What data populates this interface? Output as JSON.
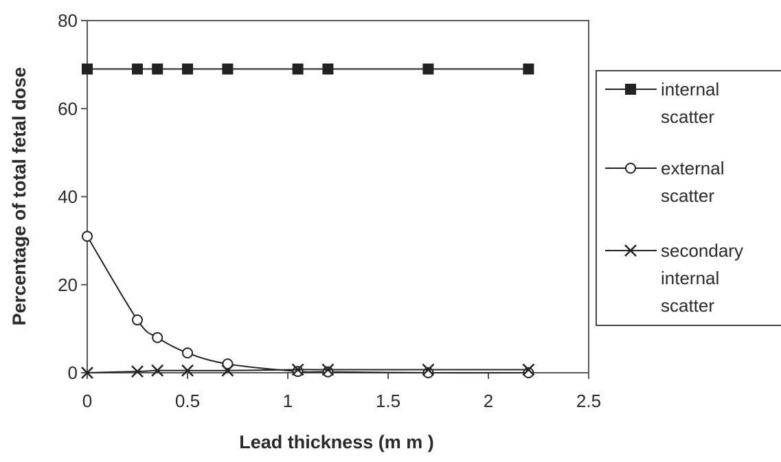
{
  "chart_data": {
    "type": "line",
    "title": "",
    "xlabel": "Lead thickness (m m )",
    "ylabel": "Percentage of total fetal dose",
    "xlim": [
      0,
      2.5
    ],
    "ylim": [
      0,
      80
    ],
    "xticks": [
      "0",
      "0.5",
      "1",
      "1.5",
      "2",
      "2.5"
    ],
    "yticks": [
      "0",
      "20",
      "40",
      "60",
      "80"
    ],
    "grid": false,
    "legend_position": "right",
    "series": [
      {
        "name": "internal scatter",
        "legend_lines": [
          "internal",
          "scatter"
        ],
        "marker": "filled-square",
        "color": "#222222",
        "x": [
          0,
          0.25,
          0.35,
          0.5,
          0.7,
          1.05,
          1.2,
          1.7,
          2.2
        ],
        "y": [
          69,
          69,
          69,
          69,
          69,
          69,
          69,
          69,
          69
        ]
      },
      {
        "name": "external scatter",
        "legend_lines": [
          "external",
          "scatter"
        ],
        "marker": "open-circle",
        "color": "#222222",
        "x": [
          0,
          0.25,
          0.35,
          0.5,
          0.7,
          1.05,
          1.2,
          1.7,
          2.2
        ],
        "y": [
          31,
          12,
          8,
          4.5,
          2,
          0.3,
          0.2,
          0,
          0
        ]
      },
      {
        "name": "secondary internal scatter",
        "legend_lines": [
          "secondary",
          "internal",
          "scatter"
        ],
        "marker": "x",
        "color": "#222222",
        "x": [
          0,
          0.25,
          0.35,
          0.5,
          0.7,
          1.05,
          1.2,
          1.7,
          2.2
        ],
        "y": [
          0,
          0.3,
          0.5,
          0.5,
          0.5,
          0.7,
          0.7,
          0.7,
          0.7
        ]
      }
    ]
  }
}
